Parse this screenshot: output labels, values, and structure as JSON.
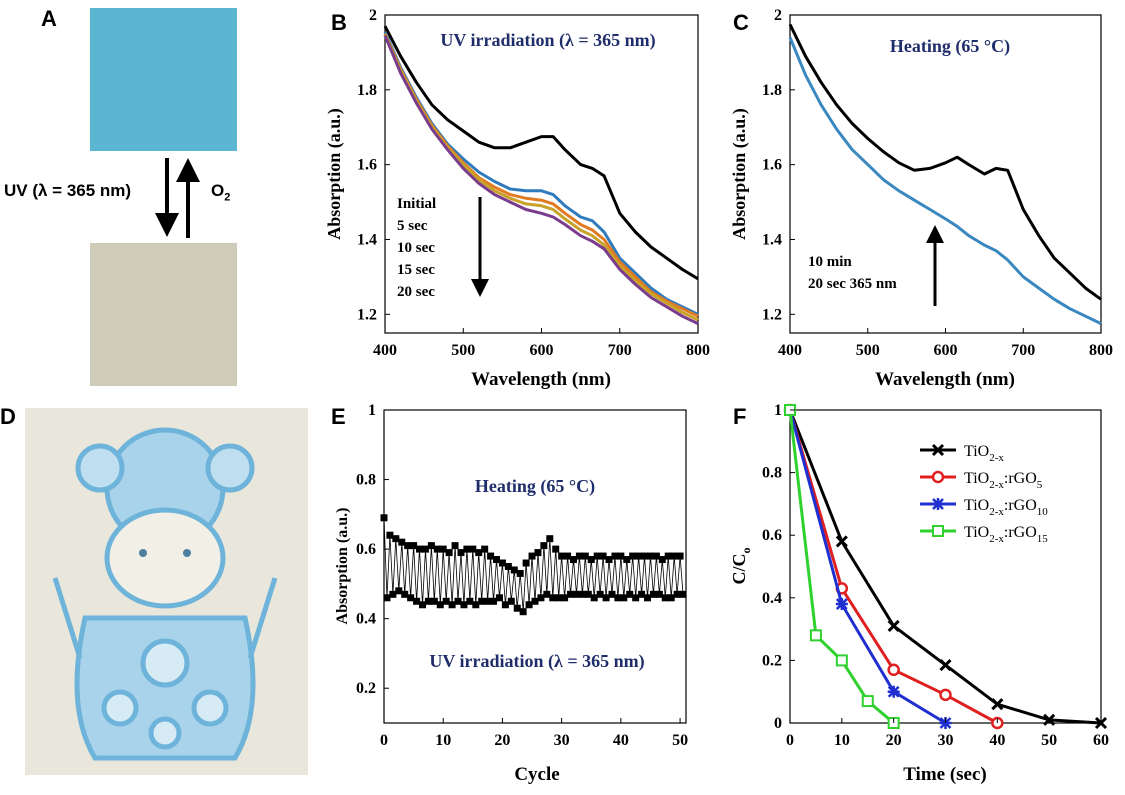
{
  "panels": {
    "A": "A",
    "B": "B",
    "C": "C",
    "D": "D",
    "E": "E",
    "F": "F"
  },
  "colors": {
    "uv_blue": "#5bb6d1",
    "bleached": "#cfcbb9",
    "title_blue": "#1f2d6b",
    "photo_bg": "#e9e6dc",
    "print_blue": "#6db3da"
  },
  "panel_a": {
    "uv_label": "UV (λ = 365 nm)",
    "o2_label": "O",
    "o2_sub": "2"
  },
  "chart_data": [
    {
      "id": "B",
      "type": "line",
      "title": "UV irradiation (λ = 365 nm)",
      "xlabel": "Wavelength (nm)",
      "ylabel": "Absorption (a.u.)",
      "xlim": [
        400,
        800
      ],
      "ylim": [
        1.15,
        2.0
      ],
      "xticks": [
        400,
        500,
        600,
        700,
        800
      ],
      "yticks": [
        1.2,
        1.4,
        1.6,
        1.8,
        2
      ],
      "annotation": [
        "Initial",
        "5 sec",
        "10 sec",
        "15 sec",
        "20 sec"
      ],
      "x": [
        400,
        420,
        440,
        460,
        480,
        500,
        520,
        540,
        560,
        580,
        600,
        615,
        630,
        650,
        665,
        680,
        700,
        720,
        740,
        760,
        780,
        800
      ],
      "series": [
        {
          "name": "Initial",
          "color": "#000000",
          "values": [
            1.97,
            1.89,
            1.82,
            1.76,
            1.72,
            1.69,
            1.66,
            1.645,
            1.645,
            1.66,
            1.675,
            1.675,
            1.64,
            1.6,
            1.59,
            1.57,
            1.47,
            1.42,
            1.38,
            1.35,
            1.32,
            1.295
          ]
        },
        {
          "name": "5 sec",
          "color": "#2f7bbd",
          "values": [
            1.955,
            1.86,
            1.78,
            1.71,
            1.655,
            1.615,
            1.58,
            1.555,
            1.535,
            1.53,
            1.53,
            1.52,
            1.49,
            1.46,
            1.45,
            1.42,
            1.35,
            1.31,
            1.27,
            1.24,
            1.22,
            1.2
          ]
        },
        {
          "name": "10 sec",
          "color": "#e07b22",
          "values": [
            1.95,
            1.855,
            1.775,
            1.705,
            1.65,
            1.605,
            1.565,
            1.54,
            1.52,
            1.51,
            1.505,
            1.495,
            1.47,
            1.44,
            1.425,
            1.4,
            1.34,
            1.3,
            1.26,
            1.235,
            1.215,
            1.195
          ]
        },
        {
          "name": "15 sec",
          "color": "#c9a227",
          "values": [
            1.948,
            1.85,
            1.77,
            1.7,
            1.645,
            1.6,
            1.56,
            1.53,
            1.51,
            1.495,
            1.49,
            1.48,
            1.455,
            1.425,
            1.41,
            1.385,
            1.33,
            1.29,
            1.255,
            1.23,
            1.205,
            1.185
          ]
        },
        {
          "name": "20 sec",
          "color": "#7a3c8c",
          "values": [
            1.945,
            1.845,
            1.765,
            1.695,
            1.64,
            1.59,
            1.55,
            1.52,
            1.5,
            1.48,
            1.47,
            1.46,
            1.44,
            1.41,
            1.395,
            1.375,
            1.32,
            1.28,
            1.245,
            1.22,
            1.195,
            1.175
          ]
        }
      ]
    },
    {
      "id": "C",
      "type": "line",
      "title": "Heating (65 °C)",
      "xlabel": "Wavelength (nm)",
      "ylabel": "Absorption (a.u.)",
      "xlim": [
        400,
        800
      ],
      "ylim": [
        1.15,
        2.0
      ],
      "xticks": [
        400,
        500,
        600,
        700,
        800
      ],
      "yticks": [
        1.2,
        1.4,
        1.6,
        1.8,
        2
      ],
      "annotation": [
        "10 min",
        "20 sec 365 nm"
      ],
      "x": [
        400,
        420,
        440,
        460,
        480,
        500,
        520,
        540,
        560,
        580,
        600,
        615,
        630,
        650,
        665,
        680,
        700,
        720,
        740,
        760,
        780,
        800
      ],
      "series": [
        {
          "name": "10 min",
          "color": "#000000",
          "values": [
            1.975,
            1.89,
            1.82,
            1.76,
            1.71,
            1.67,
            1.635,
            1.605,
            1.585,
            1.59,
            1.605,
            1.62,
            1.6,
            1.575,
            1.59,
            1.585,
            1.48,
            1.41,
            1.35,
            1.31,
            1.27,
            1.24
          ]
        },
        {
          "name": "20 sec 365 nm",
          "color": "#3a88c0",
          "values": [
            1.94,
            1.84,
            1.76,
            1.695,
            1.64,
            1.6,
            1.56,
            1.53,
            1.505,
            1.48,
            1.455,
            1.435,
            1.41,
            1.385,
            1.37,
            1.345,
            1.3,
            1.27,
            1.24,
            1.215,
            1.195,
            1.175
          ]
        }
      ]
    },
    {
      "id": "E",
      "type": "line",
      "title_top": "Heating (65 °C)",
      "title_bottom": "UV irradiation (λ = 365 nm)",
      "xlabel": "Cycle",
      "ylabel": "Absorption (a.u.)",
      "xlim": [
        0,
        51
      ],
      "ylim": [
        0.1,
        1.0
      ],
      "xticks": [
        0,
        10,
        20,
        30,
        40,
        50
      ],
      "yticks": [
        0.2,
        0.4,
        0.6,
        0.8,
        1
      ],
      "series": [
        {
          "name": "Heating",
          "values": [
            0.69,
            0.64,
            0.63,
            0.62,
            0.61,
            0.61,
            0.6,
            0.6,
            0.61,
            0.6,
            0.6,
            0.59,
            0.61,
            0.59,
            0.6,
            0.6,
            0.59,
            0.6,
            0.58,
            0.57,
            0.56,
            0.55,
            0.54,
            0.53,
            0.56,
            0.58,
            0.59,
            0.61,
            0.63,
            0.6,
            0.58,
            0.58,
            0.57,
            0.58,
            0.58,
            0.57,
            0.58,
            0.58,
            0.57,
            0.58,
            0.58,
            0.57,
            0.58,
            0.58,
            0.58,
            0.58,
            0.58,
            0.57,
            0.58,
            0.58,
            0.58
          ]
        },
        {
          "name": "UV",
          "values": [
            0.46,
            0.47,
            0.48,
            0.47,
            0.46,
            0.45,
            0.44,
            0.45,
            0.45,
            0.44,
            0.45,
            0.44,
            0.45,
            0.44,
            0.45,
            0.44,
            0.45,
            0.45,
            0.45,
            0.46,
            0.44,
            0.45,
            0.43,
            0.42,
            0.44,
            0.45,
            0.46,
            0.47,
            0.46,
            0.46,
            0.46,
            0.47,
            0.47,
            0.47,
            0.47,
            0.46,
            0.47,
            0.46,
            0.47,
            0.46,
            0.46,
            0.47,
            0.46,
            0.47,
            0.46,
            0.47,
            0.47,
            0.46,
            0.46,
            0.47,
            0.47
          ]
        }
      ]
    },
    {
      "id": "F",
      "type": "line",
      "xlabel": "Time (sec)",
      "ylabel_main": "C/C",
      "ylabel_sub": "o",
      "xlim": [
        0,
        60
      ],
      "ylim": [
        0,
        1
      ],
      "xticks": [
        0,
        10,
        20,
        30,
        40,
        50,
        60
      ],
      "yticks": [
        0,
        0.2,
        0.4,
        0.6,
        0.8,
        1
      ],
      "series": [
        {
          "name": "TiO",
          "sub": "2-x",
          "suffix": "",
          "suffix_sub": "",
          "color": "#000000",
          "marker": "x",
          "x": [
            0,
            10,
            20,
            30,
            40,
            50,
            60
          ],
          "values": [
            1,
            0.58,
            0.31,
            0.185,
            0.06,
            0.01,
            0
          ]
        },
        {
          "name": "TiO",
          "sub": "2-x",
          "suffix": ":rGO",
          "suffix_sub": "5",
          "color": "#e02020",
          "marker": "circle",
          "x": [
            0,
            10,
            20,
            30,
            40
          ],
          "values": [
            1,
            0.43,
            0.17,
            0.09,
            0
          ]
        },
        {
          "name": "TiO",
          "sub": "2-x",
          "suffix": ":rGO",
          "suffix_sub": "10",
          "color": "#1f2fd0",
          "marker": "star",
          "x": [
            0,
            10,
            20,
            30
          ],
          "values": [
            1,
            0.38,
            0.1,
            0
          ]
        },
        {
          "name": "TiO",
          "sub": "2-x",
          "suffix": ":rGO",
          "suffix_sub": "15",
          "color": "#2ed12e",
          "marker": "square",
          "x": [
            0,
            5,
            10,
            15,
            20
          ],
          "values": [
            1,
            0.28,
            0.2,
            0.07,
            0
          ]
        }
      ]
    }
  ]
}
